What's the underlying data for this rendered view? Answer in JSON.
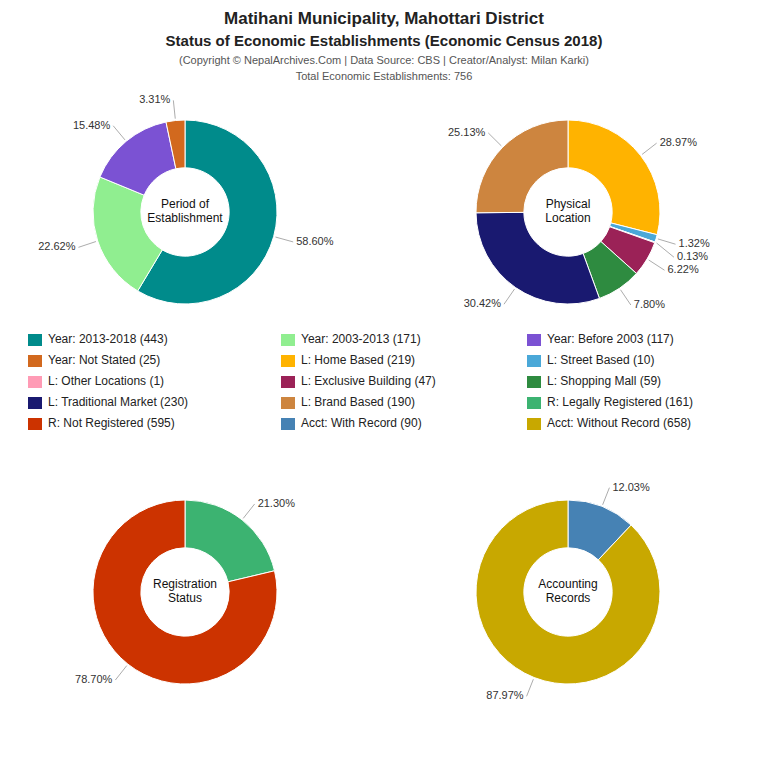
{
  "title": [
    "Matihani Municipality, Mahottari District",
    "Status of Economic Establishments (Economic Census 2018)"
  ],
  "subtitle": [
    "(Copyright © NepalArchives.Com | Data Source: CBS | Creator/Analyst: Milan Karki)",
    "Total Economic Establishments: 756"
  ],
  "chart_data": [
    {
      "type": "pie",
      "title": "Period of\nEstablishment",
      "categories": [
        "Year: 2013-2018 (443)",
        "Year: 2003-2013 (171)",
        "Year: Before 2003 (117)",
        "Year: Not Stated (25)"
      ],
      "values": [
        58.6,
        22.62,
        15.48,
        3.31
      ],
      "value_labels": [
        "58.60%",
        "22.62%",
        "15.48%",
        "3.31%"
      ],
      "colors": [
        "#008B8B",
        "#90EE90",
        "#7B52D3",
        "#D2691E"
      ],
      "data_labels": true
    },
    {
      "type": "pie",
      "title": "Physical\nLocation",
      "categories": [
        "L: Home Based (219)",
        "L: Street Based (10)",
        "L: Other Locations (1)",
        "L: Exclusive Building (47)",
        "L: Shopping Mall (59)",
        "L: Traditional Market (230)",
        "L: Brand Based (190)"
      ],
      "values": [
        28.97,
        1.32,
        0.13,
        6.22,
        7.8,
        30.42,
        25.13
      ],
      "value_labels": [
        "28.97%",
        "1.32%",
        "0.13%",
        "6.22%",
        "7.80%",
        "30.42%",
        "25.13%"
      ],
      "colors": [
        "#FFB300",
        "#4AA8D8",
        "#FF9BB5",
        "#9B2257",
        "#2E8B40",
        "#191970",
        "#CD853F"
      ],
      "data_labels": true
    },
    {
      "type": "pie",
      "title": "Registration\nStatus",
      "categories": [
        "R: Legally Registered (161)",
        "R: Not Registered (595)"
      ],
      "values": [
        21.3,
        78.7
      ],
      "value_labels": [
        "21.30%",
        "78.70%"
      ],
      "colors": [
        "#3CB371",
        "#CC3300"
      ],
      "data_labels": true
    },
    {
      "type": "pie",
      "title": "Accounting\nRecords",
      "categories": [
        "Acct: With Record (90)",
        "Acct: Without Record (658)"
      ],
      "values": [
        12.03,
        87.97
      ],
      "value_labels": [
        "12.03%",
        "87.97%"
      ],
      "colors": [
        "#4682B4",
        "#C8A800"
      ],
      "data_labels": true
    }
  ]
}
